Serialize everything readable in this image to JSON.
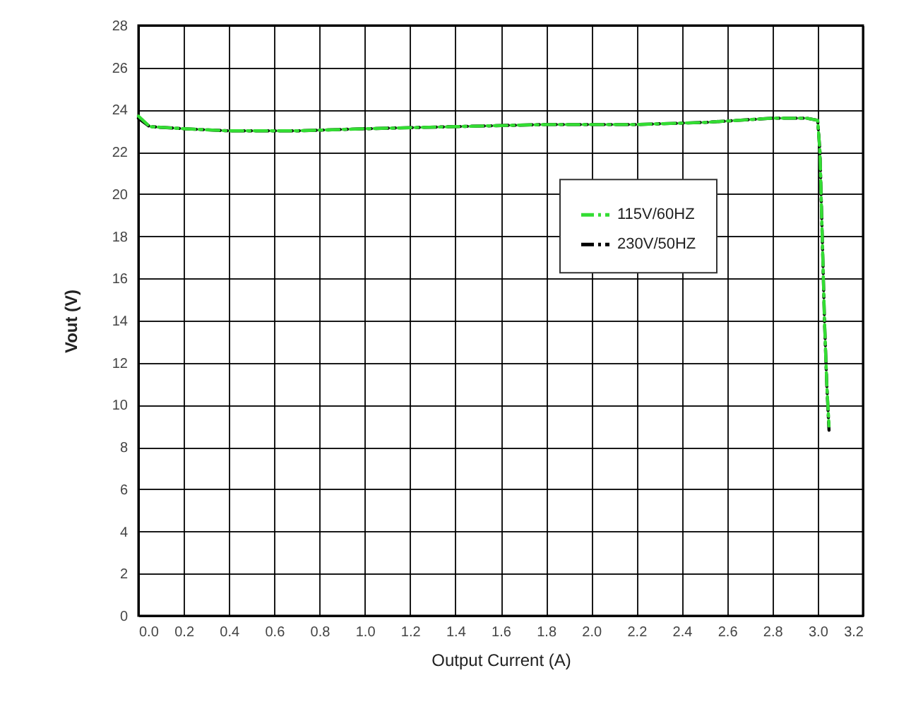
{
  "chart_data": {
    "type": "line",
    "xlabel": "Output Current (A)",
    "ylabel": "Vout (V)",
    "xlim": [
      0,
      3.2
    ],
    "xticks": [
      {
        "value": 0,
        "label": "0.0"
      },
      0.2,
      0.4,
      0.6,
      0.8,
      {
        "value": 1,
        "label": "1.0"
      },
      1.2,
      1.4,
      1.6,
      1.8,
      {
        "value": 2,
        "label": "2.0"
      },
      2.2,
      2.4,
      2.6,
      2.8,
      {
        "value": 3,
        "label": "3.0"
      },
      3.2
    ],
    "ylim": [
      0,
      28
    ],
    "yticks": [
      0,
      2,
      4,
      6,
      8,
      10,
      12,
      14,
      16,
      18,
      20,
      22,
      24,
      26,
      28
    ],
    "grid": true,
    "legend": "right",
    "line_style": "dashed",
    "marker": "none",
    "series": [
      {
        "name": "115V/60HZ",
        "color": "#33dd33",
        "x": [
          0,
          0.05,
          0.2,
          0.4,
          0.7,
          1.0,
          1.4,
          1.8,
          2.2,
          2.5,
          2.8,
          2.95,
          3.0,
          3.01,
          3.02,
          3.03,
          3.04,
          3.05
        ],
        "values": [
          23.7,
          23.2,
          23.1,
          23.0,
          23.0,
          23.1,
          23.2,
          23.3,
          23.3,
          23.4,
          23.6,
          23.6,
          23.5,
          22,
          18,
          14,
          11,
          9
        ]
      },
      {
        "name": "230V/50HZ",
        "color": "#000000",
        "x": [
          0,
          0.05,
          0.2,
          0.4,
          0.7,
          1.0,
          1.4,
          1.8,
          2.2,
          2.5,
          2.8,
          2.95,
          3.0,
          3.01,
          3.02,
          3.03,
          3.04,
          3.05
        ],
        "values": [
          23.6,
          23.2,
          23.1,
          23.0,
          23.0,
          23.1,
          23.2,
          23.3,
          23.3,
          23.4,
          23.6,
          23.6,
          23.5,
          22,
          18,
          14,
          11,
          8.8
        ]
      }
    ]
  }
}
